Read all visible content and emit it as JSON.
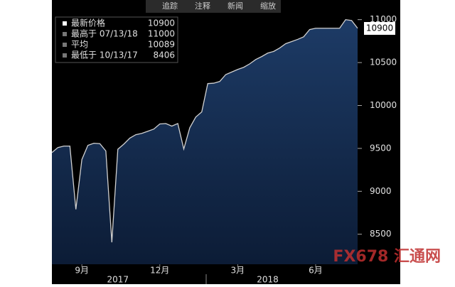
{
  "chart_data": {
    "type": "area",
    "toolbar": [
      "追踪",
      "注释",
      "新闻",
      "缩放"
    ],
    "categories": [
      null,
      null,
      null,
      null,
      null,
      "9月",
      null,
      null,
      null,
      null,
      null,
      null,
      null,
      null,
      null,
      null,
      null,
      null,
      "12月",
      null,
      null,
      null,
      null,
      null,
      null,
      null,
      null,
      null,
      null,
      null,
      null,
      "3月",
      null,
      null,
      null,
      null,
      null,
      null,
      null,
      null,
      null,
      null,
      null,
      null,
      "6月",
      null,
      null,
      null,
      null,
      null,
      null,
      null
    ],
    "year_labels": [
      null,
      null,
      null,
      null,
      null,
      null,
      null,
      null,
      null,
      null,
      null,
      "2017",
      null,
      null,
      null,
      null,
      null,
      null,
      null,
      null,
      null,
      null,
      null,
      null,
      null,
      null,
      null,
      null,
      null,
      null,
      null,
      null,
      null,
      null,
      null,
      null,
      "2018",
      null,
      null,
      null,
      null,
      null,
      null,
      null,
      null,
      null,
      null,
      null,
      null,
      null,
      null,
      null
    ],
    "values": [
      9452,
      9510,
      9527,
      9527,
      8790,
      9370,
      9535,
      9560,
      9555,
      9470,
      8406,
      9490,
      9550,
      9620,
      9660,
      9675,
      9700,
      9725,
      9785,
      9790,
      9760,
      9790,
      9493,
      9740,
      9865,
      9925,
      10255,
      10260,
      10280,
      10360,
      10390,
      10420,
      10445,
      10485,
      10535,
      10570,
      10610,
      10630,
      10670,
      10720,
      10745,
      10770,
      10800,
      10885,
      10900,
      10900,
      10900,
      10900,
      10900,
      11000,
      10990,
      10900
    ],
    "line_color": "#d0d0d0",
    "fill_color": "#17335a",
    "ylim": [
      8150,
      11080
    ],
    "yticks": [
      8500,
      9000,
      9500,
      10000,
      10500,
      11000
    ],
    "legend": [
      {
        "label": "最新价格",
        "value": 10900
      },
      {
        "label": "最高于 07/13/18",
        "value": 11000
      },
      {
        "label": "平均",
        "value": 10089
      },
      {
        "label": "最低于 10/13/17",
        "value": 8406
      }
    ],
    "watermark": "FX678 汇通网"
  }
}
